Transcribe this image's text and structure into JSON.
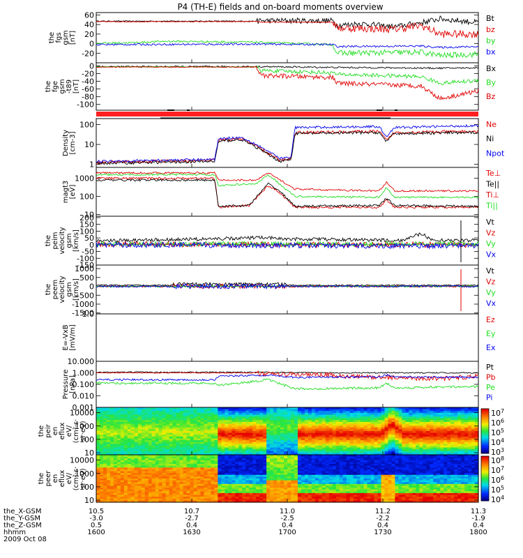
{
  "title": "P4 (TH-E) fields and on-board moments overview",
  "colors": {
    "black": "#000000",
    "red": "#e00000",
    "green": "#22dd22",
    "blue": "#0000ee",
    "bar": "#ff2020"
  },
  "chart_data": [
    {
      "id": "fgs",
      "type": "line",
      "ylabel": [
        "the",
        "fgs",
        "gsm",
        "[nT]"
      ],
      "ylim": [
        -40,
        65
      ],
      "ticks": [
        {
          "v": 60,
          "label": "60"
        },
        {
          "v": 40,
          "label": "40"
        },
        {
          "v": 20,
          "label": "20"
        },
        {
          "v": 0,
          "label": "0"
        },
        {
          "v": -20,
          "label": "-20"
        }
      ],
      "legend": [
        {
          "label": "Bt",
          "color": "black"
        },
        {
          "label": "bz",
          "color": "red"
        },
        {
          "label": "by",
          "color": "green"
        },
        {
          "label": "bx",
          "color": "blue"
        }
      ]
    },
    {
      "id": "fge",
      "type": "line",
      "ylabel": [
        "the",
        "fge",
        "gsm",
        "-t89",
        "[nT]"
      ],
      "ylim": [
        -115,
        8
      ],
      "ticks": [
        {
          "v": 0,
          "label": "0"
        },
        {
          "v": -20,
          "label": "-20"
        },
        {
          "v": -40,
          "label": "-40"
        },
        {
          "v": -60,
          "label": "-60"
        },
        {
          "v": -80,
          "label": "-80"
        },
        {
          "v": -100,
          "label": "-100"
        }
      ],
      "legend": [
        {
          "label": "Bx",
          "color": "black"
        },
        {
          "label": "By",
          "color": "green"
        },
        {
          "label": "Bz",
          "color": "red"
        }
      ]
    },
    {
      "id": "density",
      "type": "line",
      "log": true,
      "ylabel": [
        "Density",
        "[cm-3]"
      ],
      "ylim": [
        0.7,
        200
      ],
      "ticks": [
        {
          "v": 100,
          "label": "100"
        },
        {
          "v": 10,
          "label": "10"
        },
        {
          "v": 1,
          "label": "1"
        }
      ],
      "legend": [
        {
          "label": "Ne",
          "color": "red"
        },
        {
          "label": "Ni",
          "color": "black"
        },
        {
          "label": "Npot",
          "color": "blue"
        }
      ]
    },
    {
      "id": "temp",
      "type": "line",
      "log": true,
      "ylabel": [
        "magt3",
        "[eV]"
      ],
      "ylim": [
        8,
        4000
      ],
      "ticks": [
        {
          "v": 1000,
          "label": "1000"
        },
        {
          "v": 100,
          "label": "100"
        },
        {
          "v": 10,
          "label": "10"
        }
      ],
      "legend": [
        {
          "label": "Te⊥",
          "color": "red"
        },
        {
          "label": "Te||",
          "color": "black"
        },
        {
          "label": "Ti⊥",
          "color": "red"
        },
        {
          "label": "Ti||",
          "color": "green"
        }
      ]
    },
    {
      "id": "peim",
      "type": "line",
      "ylabel": [
        "the",
        "peim",
        "velocity",
        "gsm",
        "[km/s]"
      ],
      "ylim": [
        -150,
        210
      ],
      "ticks": [
        {
          "v": 200,
          "label": "200"
        },
        {
          "v": 150,
          "label": "150"
        },
        {
          "v": 100,
          "label": "100"
        },
        {
          "v": 50,
          "label": "50"
        },
        {
          "v": 0,
          "label": "0"
        },
        {
          "v": -50,
          "label": "-50"
        },
        {
          "v": -100,
          "label": "-100"
        },
        {
          "v": -150,
          "label": "-150"
        }
      ],
      "legend": [
        {
          "label": "Vt",
          "color": "black"
        },
        {
          "label": "Vz",
          "color": "red"
        },
        {
          "label": "Vy",
          "color": "green"
        },
        {
          "label": "Vx",
          "color": "blue"
        }
      ]
    },
    {
      "id": "peem",
      "type": "line",
      "ylabel": [
        "the",
        "peem",
        "velocity",
        "gsm",
        "[km/s]"
      ],
      "ylim": [
        -1550,
        1200
      ],
      "ticks": [
        {
          "v": 1000,
          "label": "1000"
        },
        {
          "v": 500,
          "label": "500"
        },
        {
          "v": 0,
          "label": "0"
        },
        {
          "v": -500,
          "label": "-500"
        },
        {
          "v": -1000,
          "label": "-1000"
        },
        {
          "v": -1500,
          "label": "-1500"
        }
      ],
      "legend": [
        {
          "label": "Vt",
          "color": "black"
        },
        {
          "label": "Vz",
          "color": "red"
        },
        {
          "label": "Vy",
          "color": "green"
        },
        {
          "label": "Vx",
          "color": "blue"
        }
      ]
    },
    {
      "id": "efield",
      "type": "line",
      "ylabel": [
        "E=-VxB",
        "[mV/m]"
      ],
      "ylim": [
        0,
        1
      ],
      "ticks": [
        {
          "v": 1,
          "label": "1.0"
        }
      ],
      "legend": [
        {
          "label": "Ez",
          "color": "red"
        },
        {
          "label": "Ey",
          "color": "green"
        },
        {
          "label": "Ex",
          "color": "blue"
        }
      ]
    },
    {
      "id": "pressure",
      "type": "line",
      "log": true,
      "ylabel": [
        "Pressure",
        "[nPa]"
      ],
      "ylim": [
        0.001,
        10
      ],
      "ticks": [
        {
          "v": 10,
          "label": "10.000"
        },
        {
          "v": 1,
          "label": "1.000"
        },
        {
          "v": 0.1,
          "label": "0.100"
        },
        {
          "v": 0.01,
          "label": "0.010"
        },
        {
          "v": 0.001,
          "label": "0.001"
        }
      ],
      "legend": [
        {
          "label": "Pt",
          "color": "black"
        },
        {
          "label": "Pb",
          "color": "red"
        },
        {
          "label": "Pe",
          "color": "green"
        },
        {
          "label": "Pi",
          "color": "blue"
        }
      ]
    },
    {
      "id": "peir",
      "type": "heatmap",
      "log": true,
      "ylabel": [
        "the",
        "peir",
        "en",
        "eflux",
        "eV/",
        "(cm²·s·",
        "sr·eV)"
      ],
      "ylim": [
        7,
        25000
      ],
      "ticks": [
        {
          "v": 10000,
          "label": "10000"
        },
        {
          "v": 1000,
          "label": "1000"
        },
        {
          "v": 100,
          "label": "100"
        },
        {
          "v": 10,
          "label": "10"
        }
      ],
      "colorbar": [
        {
          "exp": "7"
        },
        {
          "exp": "6"
        },
        {
          "exp": "5"
        },
        {
          "exp": "4"
        },
        {
          "exp": "3"
        }
      ]
    },
    {
      "id": "peer",
      "type": "heatmap",
      "log": true,
      "ylabel": [
        "the",
        "peer",
        "en",
        "eflux",
        "eV/",
        "(cm²·s·",
        "sr·eV)"
      ],
      "ylim": [
        7,
        25000
      ],
      "ticks": [
        {
          "v": 10000,
          "label": "10000"
        },
        {
          "v": 1000,
          "label": "1000"
        },
        {
          "v": 100,
          "label": "100"
        },
        {
          "v": 10,
          "label": "10"
        }
      ],
      "colorbar": [
        {
          "exp": "8"
        },
        {
          "exp": "7"
        },
        {
          "exp": "6"
        },
        {
          "exp": "5"
        },
        {
          "exp": "4"
        }
      ]
    }
  ],
  "xaxis": {
    "labels": [
      "the_X-GSM",
      "the_Y-GSM",
      "the_Z-GSM",
      "hhmm",
      "2009 Oct 08"
    ],
    "ticks": [
      {
        "x": 10.5,
        "y": -3.0,
        "z": 0.5,
        "t": "1600",
        "xl": "10.5",
        "yl": "-3.0",
        "zl": "0.5"
      },
      {
        "x": 10.7,
        "y": -2.7,
        "z": 0.4,
        "t": "1630",
        "xl": "10.7",
        "yl": "-2.7",
        "zl": "0.4"
      },
      {
        "x": 11.0,
        "y": -2.5,
        "z": 0.4,
        "t": "1700",
        "xl": "11.0",
        "yl": "-2.5",
        "zl": "0.4"
      },
      {
        "x": 11.2,
        "y": -2.2,
        "z": 0.4,
        "t": "1730",
        "xl": "11.2",
        "yl": "-2.2",
        "zl": "0.4"
      },
      {
        "x": 11.3,
        "y": -1.9,
        "z": 0.4,
        "t": "1800",
        "xl": "11.3",
        "yl": "-1.9",
        "zl": "0.4"
      }
    ]
  }
}
